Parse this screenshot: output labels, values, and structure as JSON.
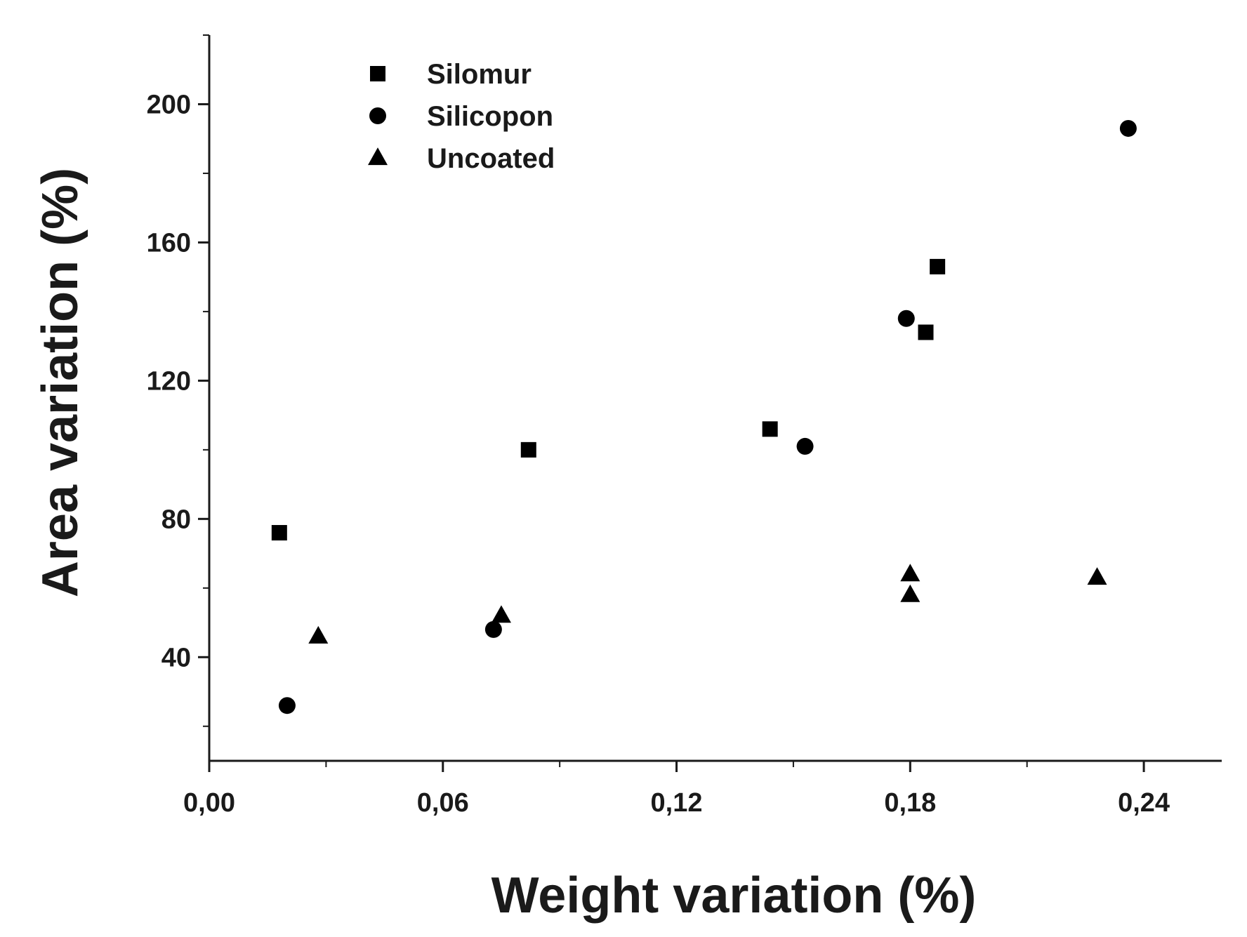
{
  "chart_data": {
    "type": "scatter",
    "title": "",
    "xlabel": "Weight variation (%)",
    "ylabel": "Area variation (%)",
    "xlim": [
      0,
      0.26
    ],
    "ylim": [
      10,
      220
    ],
    "x_ticks": [
      0,
      0.06,
      0.12,
      0.18,
      0.24
    ],
    "x_tick_labels": [
      "0,00",
      "0,06",
      "0,12",
      "0,18",
      "0,24"
    ],
    "y_ticks": [
      40,
      80,
      120,
      160,
      200
    ],
    "y_tick_labels": [
      "40",
      "80",
      "120",
      "160",
      "200"
    ],
    "grid": false,
    "legend_position": "top-left",
    "series": [
      {
        "name": "Silomur",
        "marker": "square",
        "points": [
          [
            0.018,
            76
          ],
          [
            0.082,
            100
          ],
          [
            0.144,
            106
          ],
          [
            0.184,
            134
          ],
          [
            0.187,
            153
          ]
        ]
      },
      {
        "name": "Silicopon",
        "marker": "circle",
        "points": [
          [
            0.02,
            26
          ],
          [
            0.073,
            48
          ],
          [
            0.153,
            101
          ],
          [
            0.179,
            138
          ],
          [
            0.236,
            193
          ]
        ]
      },
      {
        "name": "Uncoated",
        "marker": "triangle",
        "points": [
          [
            0.028,
            46
          ],
          [
            0.075,
            52
          ],
          [
            0.18,
            64
          ],
          [
            0.18,
            58
          ],
          [
            0.228,
            63
          ]
        ]
      }
    ],
    "marker_color": "#000000",
    "axis_color": "#1a1a1a"
  }
}
